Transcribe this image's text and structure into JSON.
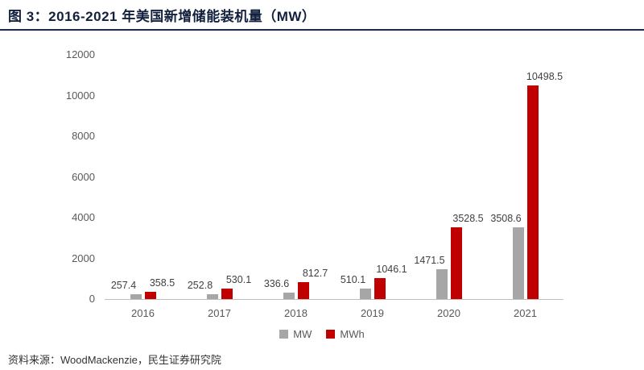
{
  "header": {
    "title": "图 3：2016-2021 年美国新增储能装机量（MW）",
    "accent_color": "#121f3d"
  },
  "footer": {
    "source": "资料来源：WoodMackenzie，民生证券研究院"
  },
  "legend": [
    {
      "label": "MW",
      "color": "#a6a6a6"
    },
    {
      "label": "MWh",
      "color": "#c00000"
    }
  ],
  "chart_data": {
    "type": "bar",
    "title": "图 3：2016-2021 年美国新增储能装机量（MW）",
    "categories": [
      "2016",
      "2017",
      "2018",
      "2019",
      "2020",
      "2021"
    ],
    "series": [
      {
        "name": "MW",
        "color": "#a6a6a6",
        "values": [
          257.4,
          252.8,
          336.6,
          510.1,
          1471.5,
          3508.6
        ]
      },
      {
        "name": "MWh",
        "color": "#c00000",
        "values": [
          358.5,
          530.1,
          812.7,
          1046.1,
          3528.5,
          10498.5
        ]
      }
    ],
    "xlabel": "",
    "ylabel": "",
    "ylim": [
      0,
      12000
    ],
    "yticks": [
      0,
      2000,
      4000,
      6000,
      8000,
      10000,
      12000
    ],
    "grid": false,
    "legend_position": "bottom",
    "data_labels": true
  }
}
